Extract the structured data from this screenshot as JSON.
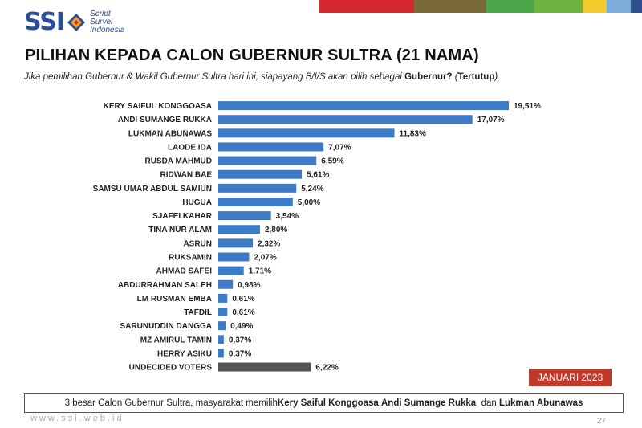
{
  "logo": {
    "brand": "SSI",
    "line1": "Script",
    "line2": "Survei",
    "line3": "Indonesia"
  },
  "colors": {
    "bar": "#3d7bc6",
    "undecided": "#555555",
    "badge": "#c0392b",
    "topbar": [
      "#d7282f",
      "#7a6a3a",
      "#4aa84a",
      "#6db33f",
      "#f2cc2e",
      "#7aaed8",
      "#2c4f8f"
    ]
  },
  "header": {
    "title": "PILIHAN KEPADA CALON GUBERNUR SULTRA (21 NAMA)",
    "question_pre": "Jika pemilihan Gubernur & Wakil Gubernur Sultra hari ini, siapayang B/I/S akan pilih sebagai ",
    "question_bold1": "Gubernur?",
    "question_mid": " (",
    "question_bold2": "Tertutup",
    "question_post": ")"
  },
  "chart_data": {
    "type": "bar",
    "orientation": "horizontal",
    "categories": [
      "KERY SAIFUL KONGGOASA",
      "ANDI SUMANGE RUKKA",
      "LUKMAN ABUNAWAS",
      "LAODE IDA",
      "RUSDA MAHMUD",
      "RIDWAN BAE",
      "SAMSU UMAR ABDUL SAMIUN",
      "HUGUA",
      "SJAFEI KAHAR",
      "TINA NUR ALAM",
      "ASRUN",
      "RUKSAMIN",
      "AHMAD SAFEI",
      "ABDURRAHMAN SALEH",
      "LM RUSMAN EMBA",
      "TAFDIL",
      "SARUNUDDIN DANGGA",
      "MZ AMIRUL TAMIN",
      "HERRY ASIKU",
      "UNDECIDED VOTERS"
    ],
    "values": [
      19.51,
      17.07,
      11.83,
      7.07,
      6.59,
      5.61,
      5.24,
      5.0,
      3.54,
      2.8,
      2.32,
      2.07,
      1.71,
      0.98,
      0.61,
      0.61,
      0.49,
      0.37,
      0.37,
      6.22
    ],
    "value_labels": [
      "19,51%",
      "17,07%",
      "11,83%",
      "7,07%",
      "6,59%",
      "5,61%",
      "5,24%",
      "5,00%",
      "3,54%",
      "2,80%",
      "2,32%",
      "2,07%",
      "1,71%",
      "0,98%",
      "0,61%",
      "0,61%",
      "0,49%",
      "0,37%",
      "0,37%",
      "6,22%"
    ],
    "highlight_last": true,
    "xlim": [
      0,
      20
    ]
  },
  "badge": {
    "text": "JANUARI 2023"
  },
  "note": {
    "pre": "3 besar Calon Gubernur Sultra,  masyarakat memilih ",
    "name1": "Kery Saiful Konggoasa",
    "sep1": ", ",
    "name2": "Andi Sumange Rukka",
    "sep2": "  dan ",
    "name3": "Lukman Abunawas"
  },
  "footer": {
    "url": "www.ssi.web.id",
    "page": "27"
  }
}
